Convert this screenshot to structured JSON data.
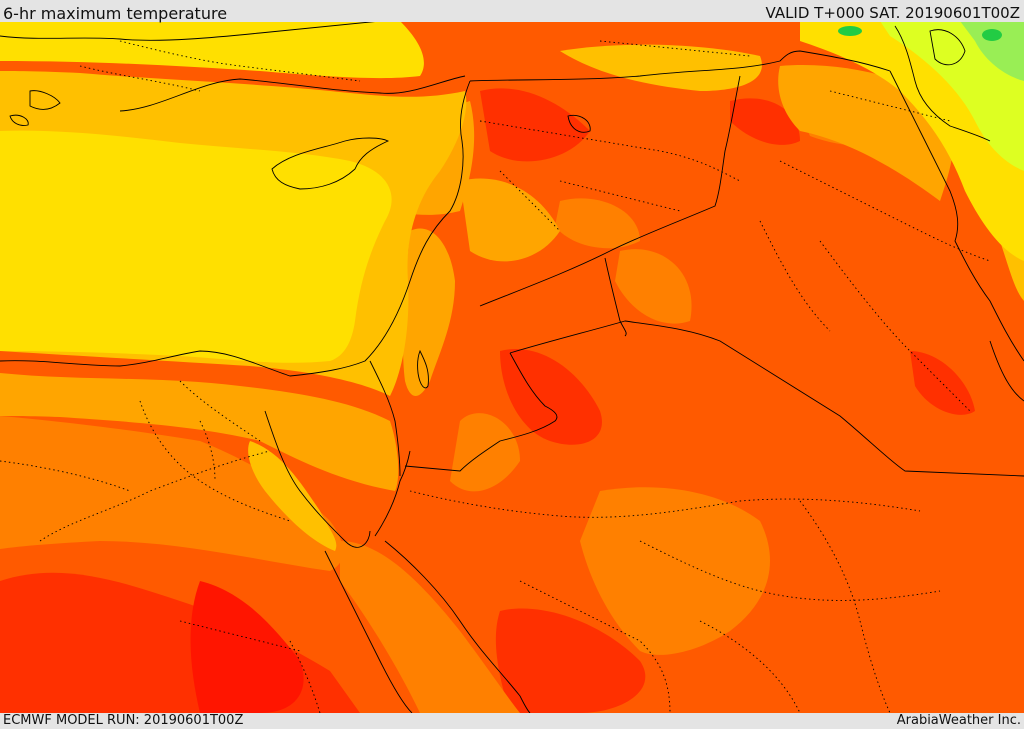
{
  "header": {
    "title": "6-hr maximum temperature",
    "valid": "VALID T+000 SAT. 20190601T00Z"
  },
  "footer": {
    "model_run": "ECMWF MODEL RUN: 20190601T00Z",
    "credit": "ArabiaWeather Inc."
  },
  "map": {
    "palette": {
      "cool_green": "#22cc44",
      "light_green": "#99ee55",
      "yellow_green": "#ddff22",
      "yellow": "#ffe000",
      "yellow_orange": "#ffc000",
      "orange": "#ffa500",
      "dark_orange": "#ff8000",
      "orange_red": "#ff5a00",
      "red": "#ff3000",
      "deep_red": "#ff1500",
      "border_color": "#000000"
    }
  }
}
